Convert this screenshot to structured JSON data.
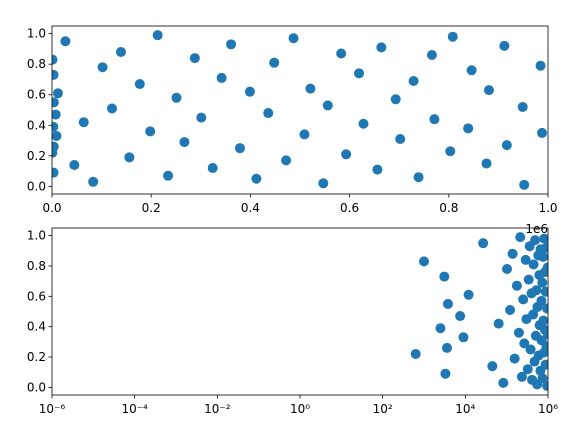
{
  "chart_data": [
    {
      "type": "scatter",
      "color": "#1f77b4",
      "log_x": false,
      "grid": false,
      "x_offset_label": "1e6",
      "x": [
        630,
        1000,
        2500,
        3100,
        3300,
        3600,
        3800,
        7500,
        9000,
        12000,
        27000,
        45000,
        64000,
        83000,
        102000,
        121000,
        139000,
        156000,
        177000,
        198000,
        213000,
        234000,
        251000,
        267000,
        288000,
        301000,
        324000,
        342000,
        361000,
        379000,
        399000,
        412000,
        436000,
        448000,
        472000,
        487000,
        509000,
        521000,
        547000,
        556000,
        583000,
        593000,
        619000,
        628000,
        656000,
        664000,
        693000,
        702000,
        729000,
        739000,
        766000,
        771000,
        803000,
        808000,
        839000,
        846000,
        876000,
        881000,
        912000,
        917000,
        949000,
        952000,
        985000,
        988000
      ],
      "y": [
        0.22,
        0.83,
        0.39,
        0.73,
        0.09,
        0.26,
        0.55,
        0.47,
        0.33,
        0.61,
        0.95,
        0.14,
        0.42,
        0.03,
        0.78,
        0.51,
        0.88,
        0.19,
        0.67,
        0.36,
        0.99,
        0.07,
        0.58,
        0.29,
        0.84,
        0.45,
        0.12,
        0.71,
        0.93,
        0.25,
        0.62,
        0.05,
        0.48,
        0.81,
        0.17,
        0.97,
        0.34,
        0.64,
        0.02,
        0.53,
        0.87,
        0.21,
        0.74,
        0.41,
        0.11,
        0.91,
        0.57,
        0.31,
        0.69,
        0.06,
        0.86,
        0.44,
        0.23,
        0.98,
        0.38,
        0.76,
        0.15,
        0.63,
        0.92,
        0.27,
        0.52,
        0.01,
        0.79,
        0.35
      ],
      "xlim": [
        0,
        1000000
      ],
      "ylim": [
        -0.05,
        1.05
      ],
      "xticks": [
        {
          "value": 0,
          "label": "0.0"
        },
        {
          "value": 200000,
          "label": "0.2"
        },
        {
          "value": 400000,
          "label": "0.4"
        },
        {
          "value": 600000,
          "label": "0.6"
        },
        {
          "value": 800000,
          "label": "0.8"
        },
        {
          "value": 1000000,
          "label": "1.0"
        }
      ],
      "yticks": [
        {
          "value": 0,
          "label": "0.0"
        },
        {
          "value": 0.2,
          "label": "0.2"
        },
        {
          "value": 0.4,
          "label": "0.4"
        },
        {
          "value": 0.6,
          "label": "0.6"
        },
        {
          "value": 0.8,
          "label": "0.8"
        },
        {
          "value": 1,
          "label": "1.0"
        }
      ]
    },
    {
      "type": "scatter",
      "color": "#1f77b4",
      "log_x": true,
      "grid": false,
      "x": [
        630,
        1000,
        2500,
        3100,
        3300,
        3600,
        3800,
        7500,
        9000,
        12000,
        27000,
        45000,
        64000,
        83000,
        102000,
        121000,
        139000,
        156000,
        177000,
        198000,
        213000,
        234000,
        251000,
        267000,
        288000,
        301000,
        324000,
        342000,
        361000,
        379000,
        399000,
        412000,
        436000,
        448000,
        472000,
        487000,
        509000,
        521000,
        547000,
        556000,
        583000,
        593000,
        619000,
        628000,
        656000,
        664000,
        693000,
        702000,
        729000,
        739000,
        766000,
        771000,
        803000,
        808000,
        839000,
        846000,
        876000,
        881000,
        912000,
        917000,
        949000,
        952000,
        985000,
        988000
      ],
      "y": [
        0.22,
        0.83,
        0.39,
        0.73,
        0.09,
        0.26,
        0.55,
        0.47,
        0.33,
        0.61,
        0.95,
        0.14,
        0.42,
        0.03,
        0.78,
        0.51,
        0.88,
        0.19,
        0.67,
        0.36,
        0.99,
        0.07,
        0.58,
        0.29,
        0.84,
        0.45,
        0.12,
        0.71,
        0.93,
        0.25,
        0.62,
        0.05,
        0.48,
        0.81,
        0.17,
        0.97,
        0.34,
        0.64,
        0.02,
        0.53,
        0.87,
        0.21,
        0.74,
        0.41,
        0.11,
        0.91,
        0.57,
        0.31,
        0.69,
        0.06,
        0.86,
        0.44,
        0.23,
        0.98,
        0.38,
        0.76,
        0.15,
        0.63,
        0.92,
        0.27,
        0.52,
        0.01,
        0.79,
        0.35
      ],
      "xlim": [
        1e-06,
        1000000
      ],
      "ylim": [
        -0.05,
        1.05
      ],
      "xticks": [
        {
          "value": 1e-06,
          "label": "10⁻⁶"
        },
        {
          "value": 0.0001,
          "label": "10⁻⁴"
        },
        {
          "value": 0.01,
          "label": "10⁻²"
        },
        {
          "value": 1,
          "label": "10⁰"
        },
        {
          "value": 100,
          "label": "10²"
        },
        {
          "value": 10000,
          "label": "10⁴"
        },
        {
          "value": 1000000,
          "label": "10⁶"
        }
      ],
      "yticks": [
        {
          "value": 0,
          "label": "0.0"
        },
        {
          "value": 0.2,
          "label": "0.2"
        },
        {
          "value": 0.4,
          "label": "0.4"
        },
        {
          "value": 0.6,
          "label": "0.6"
        },
        {
          "value": 0.8,
          "label": "0.8"
        },
        {
          "value": 1,
          "label": "1.0"
        }
      ]
    }
  ]
}
